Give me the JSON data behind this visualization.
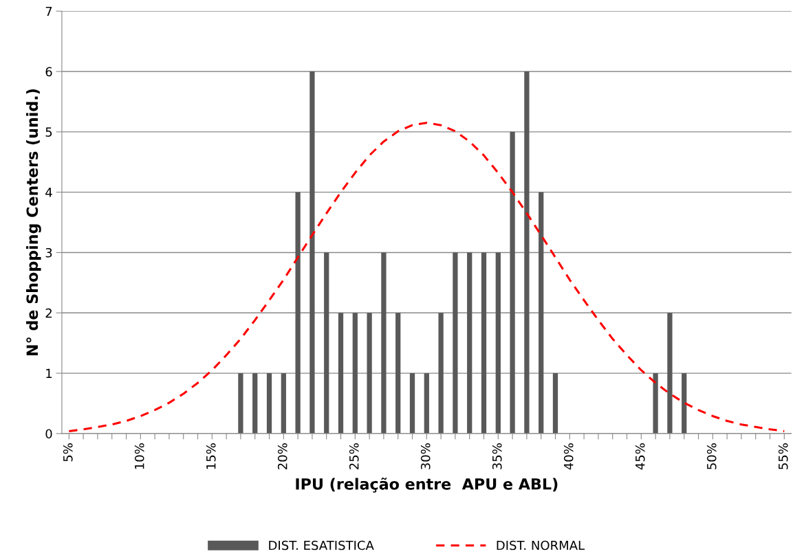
{
  "chart_data": {
    "type": "bar",
    "xlabel": "IPU (relação entre  APU e ABL)",
    "ylabel": "N° de Shopping Centers (unid.)",
    "series": [
      {
        "name": "DIST. ESATISTICA",
        "color": "#595959",
        "x": [
          17,
          18,
          19,
          20,
          21,
          22,
          23,
          24,
          25,
          26,
          27,
          28,
          29,
          30,
          31,
          32,
          33,
          34,
          35,
          36,
          37,
          38,
          39,
          46,
          47,
          48
        ],
        "values": [
          1,
          1,
          1,
          1,
          4,
          6,
          3,
          2,
          2,
          2,
          3,
          2,
          1,
          1,
          2,
          3,
          3,
          3,
          3,
          5,
          6,
          4,
          1,
          1,
          2,
          1
        ]
      },
      {
        "name": "DIST. NORMAL",
        "type": "line",
        "color": "#ff0000",
        "line_style": "dashed",
        "x": [
          5,
          6,
          7,
          8,
          9,
          10,
          11,
          12,
          13,
          14,
          15,
          16,
          17,
          18,
          19,
          20,
          21,
          22,
          23,
          24,
          25,
          26,
          27,
          28,
          29,
          30,
          31,
          32,
          33,
          34,
          35,
          36,
          37,
          38,
          39,
          40,
          41,
          42,
          43,
          44,
          45,
          46,
          47,
          48,
          49,
          50,
          51,
          52,
          53,
          54,
          55
        ],
        "values": [
          0.04,
          0.07,
          0.11,
          0.15,
          0.21,
          0.29,
          0.39,
          0.51,
          0.66,
          0.84,
          1.05,
          1.3,
          1.57,
          1.88,
          2.21,
          2.55,
          2.92,
          3.29,
          3.65,
          4.0,
          4.32,
          4.61,
          4.84,
          5.01,
          5.11,
          5.15,
          5.11,
          5.01,
          4.84,
          4.61,
          4.32,
          4.0,
          3.65,
          3.29,
          2.92,
          2.55,
          2.21,
          1.88,
          1.57,
          1.3,
          1.05,
          0.84,
          0.66,
          0.51,
          0.39,
          0.29,
          0.21,
          0.15,
          0.11,
          0.07,
          0.04
        ]
      }
    ],
    "xlim": [
      4.5,
      55.5
    ],
    "xticks": [
      {
        "value": 5,
        "label": "5%"
      },
      {
        "value": 6,
        "label": null
      },
      {
        "value": 7,
        "label": null
      },
      {
        "value": 8,
        "label": null
      },
      {
        "value": 9,
        "label": null
      },
      {
        "value": 10,
        "label": "10%"
      },
      {
        "value": 11,
        "label": null
      },
      {
        "value": 12,
        "label": null
      },
      {
        "value": 13,
        "label": null
      },
      {
        "value": 14,
        "label": null
      },
      {
        "value": 15,
        "label": "15%"
      },
      {
        "value": 16,
        "label": null
      },
      {
        "value": 17,
        "label": null
      },
      {
        "value": 18,
        "label": null
      },
      {
        "value": 19,
        "label": null
      },
      {
        "value": 20,
        "label": "20%"
      },
      {
        "value": 21,
        "label": null
      },
      {
        "value": 22,
        "label": null
      },
      {
        "value": 23,
        "label": null
      },
      {
        "value": 24,
        "label": null
      },
      {
        "value": 25,
        "label": "25%"
      },
      {
        "value": 26,
        "label": null
      },
      {
        "value": 27,
        "label": null
      },
      {
        "value": 28,
        "label": null
      },
      {
        "value": 29,
        "label": null
      },
      {
        "value": 30,
        "label": "30%"
      },
      {
        "value": 31,
        "label": null
      },
      {
        "value": 32,
        "label": null
      },
      {
        "value": 33,
        "label": null
      },
      {
        "value": 34,
        "label": null
      },
      {
        "value": 35,
        "label": "35%"
      },
      {
        "value": 36,
        "label": null
      },
      {
        "value": 37,
        "label": null
      },
      {
        "value": 38,
        "label": null
      },
      {
        "value": 39,
        "label": null
      },
      {
        "value": 40,
        "label": "40%"
      },
      {
        "value": 41,
        "label": null
      },
      {
        "value": 42,
        "label": null
      },
      {
        "value": 43,
        "label": null
      },
      {
        "value": 44,
        "label": null
      },
      {
        "value": 45,
        "label": "45%"
      },
      {
        "value": 46,
        "label": null
      },
      {
        "value": 47,
        "label": null
      },
      {
        "value": 48,
        "label": null
      },
      {
        "value": 49,
        "label": null
      },
      {
        "value": 50,
        "label": "50%"
      },
      {
        "value": 51,
        "label": null
      },
      {
        "value": 52,
        "label": null
      },
      {
        "value": 53,
        "label": null
      },
      {
        "value": 54,
        "label": null
      },
      {
        "value": 55,
        "label": "55%"
      }
    ],
    "ylim": [
      0,
      7
    ],
    "yticks": [
      0,
      1,
      2,
      3,
      4,
      5,
      6,
      7
    ],
    "grid": "y",
    "legend": "bottom"
  }
}
